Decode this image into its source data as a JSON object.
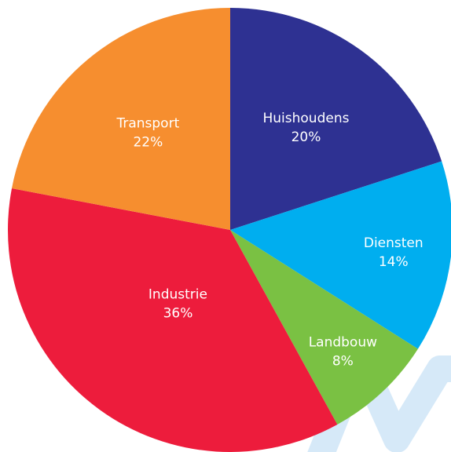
{
  "chart_data": {
    "type": "pie",
    "title": "",
    "start_angle_deg": 0,
    "direction": "clockwise",
    "slices": [
      {
        "label": "Huishoudens",
        "value": 20,
        "value_label": "20%",
        "color": "#2e3192"
      },
      {
        "label": "Diensten",
        "value": 14,
        "value_label": "14%",
        "color": "#00aeef"
      },
      {
        "label": "Landbouw",
        "value": 8,
        "value_label": "8%",
        "color": "#7ac143"
      },
      {
        "label": "Industrie",
        "value": 36,
        "value_label": "36%",
        "color": "#ed1c3c"
      },
      {
        "label": "Transport",
        "value": 22,
        "value_label": "22%",
        "color": "#f68e2f"
      }
    ]
  },
  "watermark": {
    "color": "#d6e9f8"
  }
}
